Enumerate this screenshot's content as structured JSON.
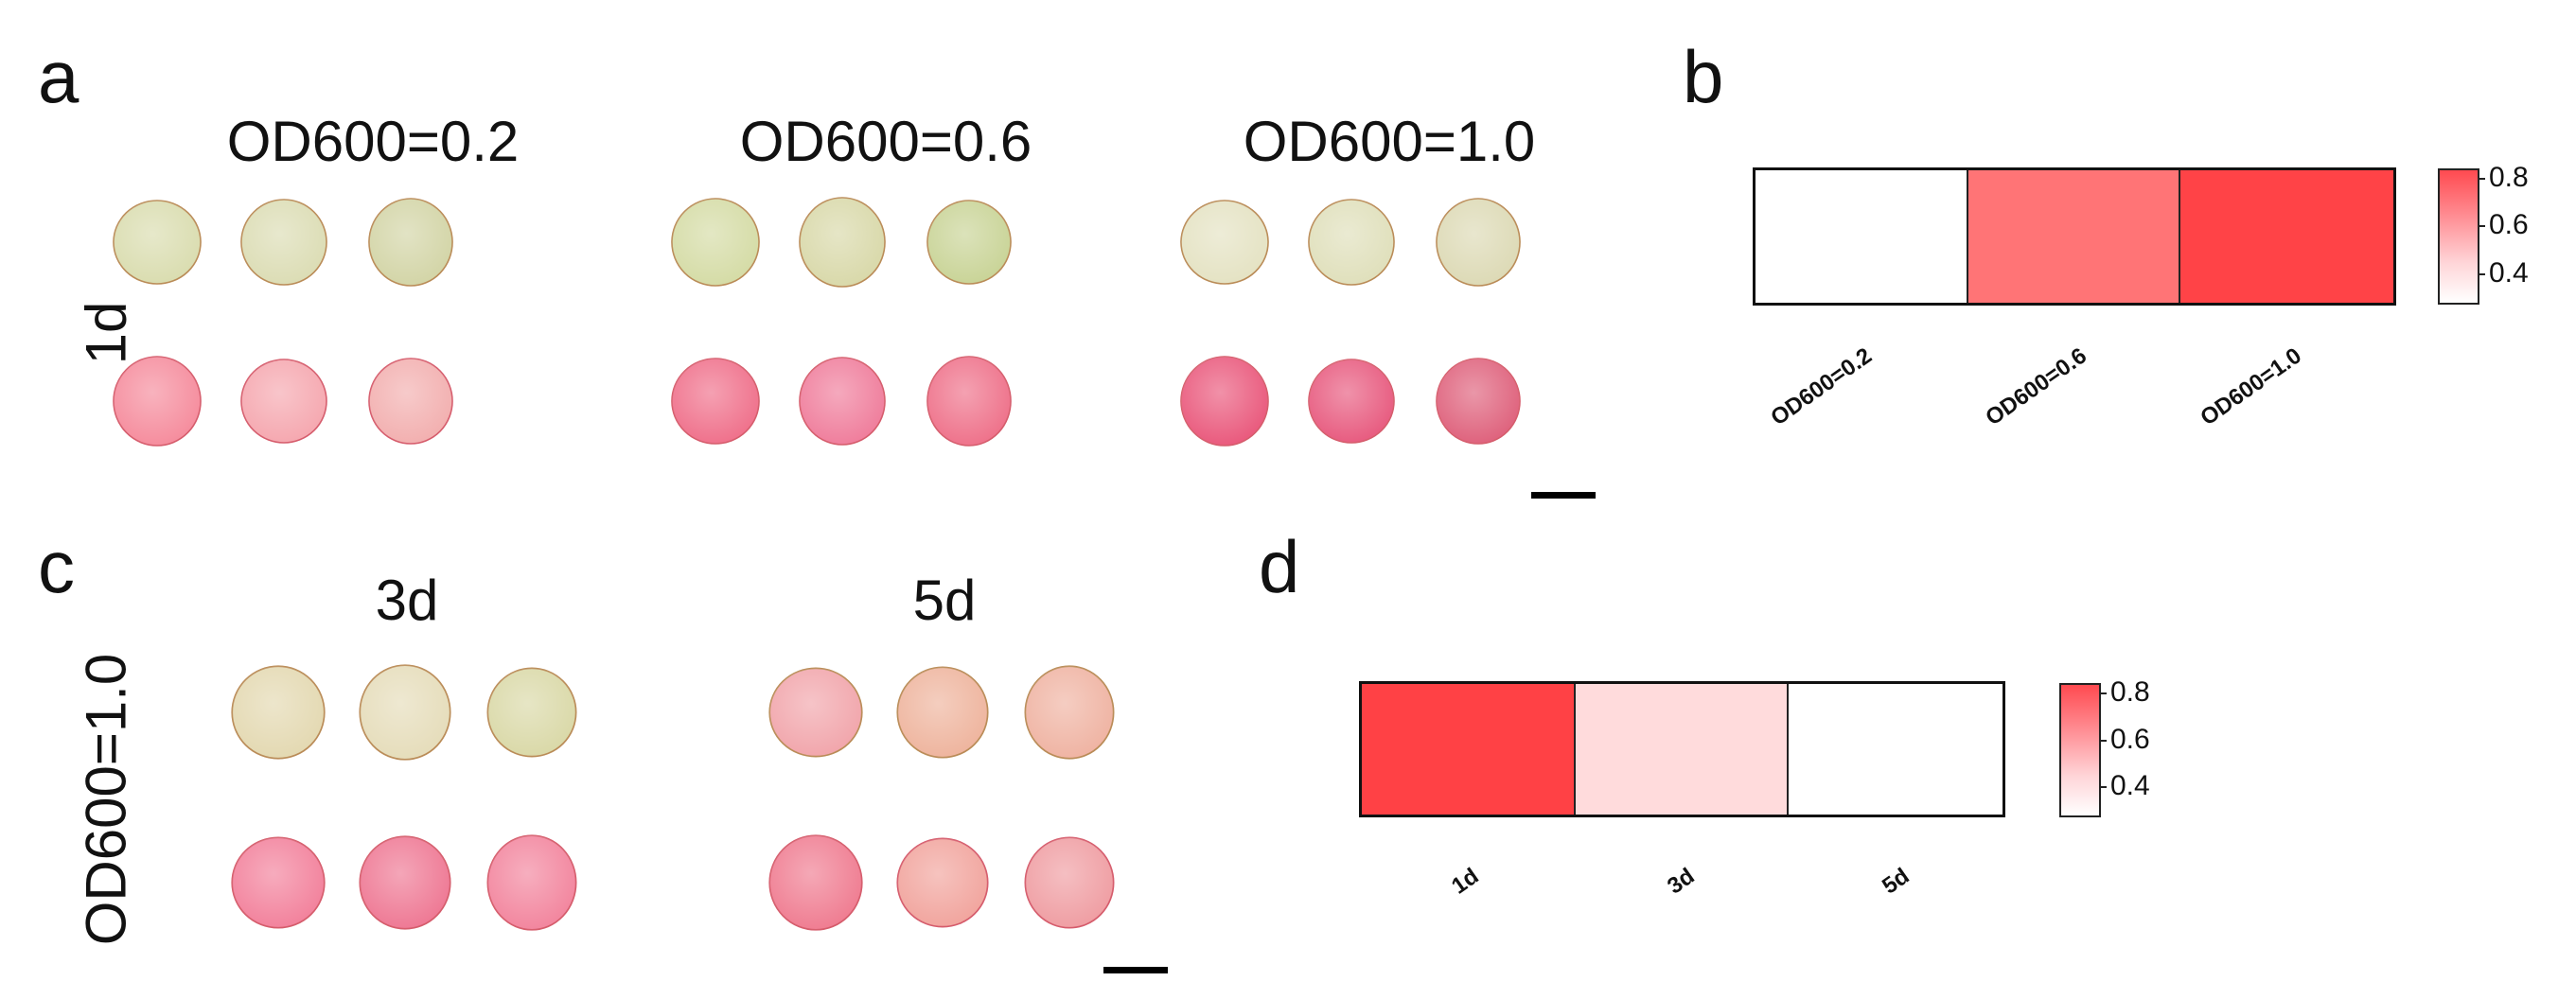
{
  "panel_a": {
    "letter": "a",
    "row_label": "1d",
    "groups": [
      {
        "label": "OD600=0.2",
        "top_colors": [
          "#d9dcae",
          "#dbdcb3",
          "#d2d4a5"
        ],
        "bottom_colors": [
          "#f58a9b",
          "#f5a6ae",
          "#f2aeae"
        ]
      },
      {
        "label": "OD600=0.6",
        "top_colors": [
          "#d4dba4",
          "#d8d8a8",
          "#c8d395"
        ],
        "bottom_colors": [
          "#ef6e89",
          "#ef7b9a",
          "#ee6f88"
        ]
      },
      {
        "label": "OD600=1.0",
        "top_colors": [
          "#e4e2c2",
          "#dfdfba",
          "#dcd9b4"
        ],
        "bottom_colors": [
          "#e9567a",
          "#e7587d",
          "#de5f7a"
        ]
      }
    ]
  },
  "panel_b": {
    "letter": "b",
    "heatmap": {
      "categories": [
        "OD600=0.2",
        "OD600=0.6",
        "OD600=1.0"
      ],
      "cell_colors": [
        "#ffffff",
        "#ff7476",
        "#ff4347"
      ]
    },
    "colorbar": {
      "ticks": [
        "0.8",
        "0.6",
        "0.4"
      ]
    }
  },
  "panel_c": {
    "letter": "c",
    "row_label": "OD600=1.0",
    "groups": [
      {
        "label": "3d",
        "top_colors": [
          "#e3d8b0",
          "#e5dcb9",
          "#d9d8a6"
        ],
        "bottom_colors": [
          "#f27f9a",
          "#ee7692",
          "#f2839c"
        ]
      },
      {
        "label": "5d",
        "top_colors": [
          "#f1a4aa",
          "#eeb39c",
          "#efb2a1"
        ],
        "bottom_colors": [
          "#ef7a8f",
          "#f1a39c",
          "#ef9ca1"
        ]
      }
    ]
  },
  "panel_d": {
    "letter": "d",
    "heatmap": {
      "categories": [
        "1d",
        "3d",
        "5d"
      ],
      "cell_colors": [
        "#ff4145",
        "#ffdbdc",
        "#ffffff"
      ]
    },
    "colorbar": {
      "ticks": [
        "0.8",
        "0.6",
        "0.4"
      ]
    }
  }
}
